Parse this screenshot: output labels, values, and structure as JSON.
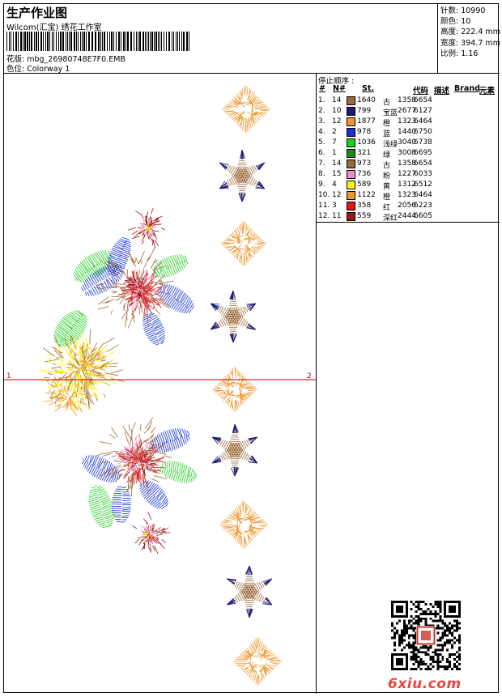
{
  "header": {
    "title": "生产作业图",
    "subtitle": "Wilcom(汇宝) 绣花工作室",
    "pattern_line": "花版:  mbg_26980748E7F0.EMB",
    "colorway_line": "色位:  Colorway 1"
  },
  "stats": [
    "针数: 10990",
    "颜色: 10",
    "高度: 222.4 mm",
    "宽度: 394.7 mm",
    "比例: 1.16"
  ],
  "stop_sequence": {
    "title": "停止顺序 :",
    "headers": {
      "num": "#",
      "needle": "N#",
      "st": "St.",
      "code": "代码",
      "desc": "描述",
      "brand": "Brand",
      "element": "元素"
    },
    "rows": [
      {
        "idx": "1.",
        "needle": "14",
        "color": "#9b6a3c",
        "st": "1640",
        "name": "古",
        "code": "1358",
        "brand": "6654"
      },
      {
        "idx": "2.",
        "needle": "10",
        "color": "#1a1a7a",
        "st": "799",
        "name": "宝蓝",
        "code": "2677",
        "brand": "6127"
      },
      {
        "idx": "3.",
        "needle": "12",
        "color": "#f0962c",
        "st": "1877",
        "name": "橙",
        "code": "1323",
        "brand": "6464"
      },
      {
        "idx": "4.",
        "needle": "2",
        "color": "#1430d8",
        "st": "978",
        "name": "蓝",
        "code": "1440",
        "brand": "6750"
      },
      {
        "idx": "5.",
        "needle": "7",
        "color": "#1ed01e",
        "st": "1036",
        "name": "浅绿",
        "code": "3040",
        "brand": "6738"
      },
      {
        "idx": "6.",
        "needle": "1",
        "color": "#1a8a1a",
        "st": "321",
        "name": "绿",
        "code": "3008",
        "brand": "6695"
      },
      {
        "idx": "7.",
        "needle": "14",
        "color": "#9b6a3c",
        "st": "973",
        "name": "古",
        "code": "1358",
        "brand": "6654"
      },
      {
        "idx": "8.",
        "needle": "15",
        "color": "#f48cc8",
        "st": "736",
        "name": "粉",
        "code": "1227",
        "brand": "6033"
      },
      {
        "idx": "9.",
        "needle": "4",
        "color": "#f8f018",
        "st": "589",
        "name": "黄",
        "code": "1312",
        "brand": "6512"
      },
      {
        "idx": "10.",
        "needle": "12",
        "color": "#f0962c",
        "st": "1122",
        "name": "橙",
        "code": "1323",
        "brand": "6464"
      },
      {
        "idx": "11.",
        "needle": "3",
        "color": "#e01818",
        "st": "358",
        "name": "红",
        "code": "2056",
        "brand": "6223"
      },
      {
        "idx": "12.",
        "needle": "11",
        "color": "#a01414",
        "st": "559",
        "name": "深红",
        "code": "2444",
        "brand": "6605"
      }
    ]
  },
  "axis": {
    "left_label": "1",
    "right_label": "2",
    "color": "#cc0000"
  },
  "watermark": {
    "logo_text": "6xiu.com"
  }
}
